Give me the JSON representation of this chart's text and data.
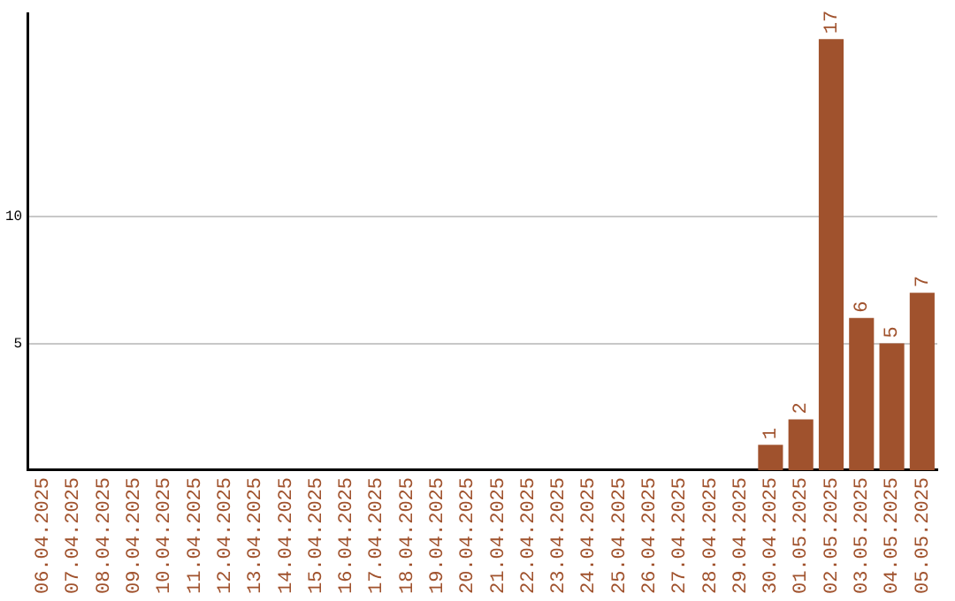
{
  "chart_data": {
    "type": "bar",
    "categories": [
      "06.04.2025",
      "07.04.2025",
      "08.04.2025",
      "09.04.2025",
      "10.04.2025",
      "11.04.2025",
      "12.04.2025",
      "13.04.2025",
      "14.04.2025",
      "15.04.2025",
      "16.04.2025",
      "17.04.2025",
      "18.04.2025",
      "19.04.2025",
      "20.04.2025",
      "21.04.2025",
      "22.04.2025",
      "23.04.2025",
      "24.04.2025",
      "25.04.2025",
      "26.04.2025",
      "27.04.2025",
      "28.04.2025",
      "29.04.2025",
      "30.04.2025",
      "01.05.2025",
      "02.05.2025",
      "03.05.2025",
      "04.05.2025",
      "05.05.2025"
    ],
    "values": [
      0,
      0,
      0,
      0,
      0,
      0,
      0,
      0,
      0,
      0,
      0,
      0,
      0,
      0,
      0,
      0,
      0,
      0,
      0,
      0,
      0,
      0,
      0,
      0,
      1,
      2,
      17,
      6,
      5,
      7
    ],
    "value_labels": [
      null,
      null,
      null,
      null,
      null,
      null,
      null,
      null,
      null,
      null,
      null,
      null,
      null,
      null,
      null,
      null,
      null,
      null,
      null,
      null,
      null,
      null,
      null,
      null,
      "1",
      "2",
      "17",
      "6",
      "5",
      "7"
    ],
    "color": "#a0522d",
    "ylim": [
      0,
      18
    ],
    "yticks": [
      5,
      10
    ],
    "grid": "y",
    "legend": false
  }
}
